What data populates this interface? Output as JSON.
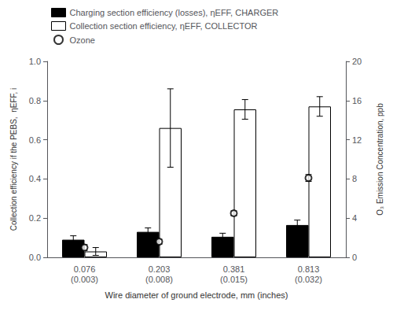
{
  "chart_data": {
    "type": "bar",
    "xlabel": "Wire diameter of ground electrode, mm (inches)",
    "ylabel": "Collection efficiency if the PEBS,  ηEFF, i",
    "y2label": "O₃ Emission Concentration, ppb",
    "categories": [
      "0.076\n(0.003)",
      "0.203\n(0.008)",
      "0.381\n(0.015)",
      "0.813\n(0.032)"
    ],
    "series": [
      {
        "name": "Charging section efficiency (losses), ηEFF, CHARGER",
        "color": "#000000",
        "values": [
          0.09,
          0.13,
          0.105,
          0.165
        ],
        "errors": [
          0.02,
          0.02,
          0.018,
          0.025
        ]
      },
      {
        "name": "Collection section efficiency, ηEFF, COLLECTOR",
        "color": "#ffffff",
        "values": [
          0.03,
          0.66,
          0.755,
          0.77
        ],
        "errors": [
          0.02,
          0.2,
          0.05,
          0.05
        ]
      },
      {
        "name": "Ozone",
        "type": "scatter",
        "axis": "y2",
        "color": "#000000",
        "marker": "emptyCircle",
        "values": [
          1.0,
          1.6,
          4.5,
          8.1
        ],
        "errors": [
          0.3,
          0.25,
          0.25,
          0.35
        ]
      }
    ],
    "ylim": [
      0,
      1.0
    ],
    "yticks": [
      {
        "value": 0.0,
        "label": "0.0"
      },
      0.2,
      0.4,
      0.6,
      0.8,
      {
        "value": 1.0,
        "label": "1.0"
      }
    ],
    "y2lim": [
      0,
      20
    ],
    "y2ticks": [
      0,
      4,
      8,
      12,
      16,
      20
    ],
    "grid": false,
    "legend": "top left"
  }
}
